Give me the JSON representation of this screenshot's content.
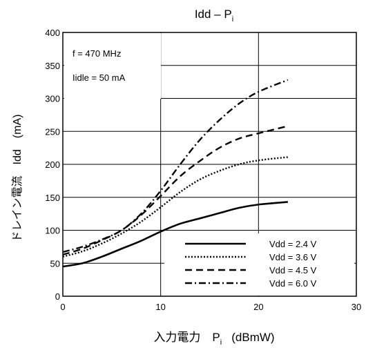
{
  "chart_data": {
    "type": "line",
    "title": "Idd – P",
    "title_sub": "i",
    "xlabel": "入力電力　P",
    "xlabel_sub": "i",
    "xlabel_unit": "(dBmW)",
    "ylabel": "ドレイン電流　Idd　(mA)",
    "xlim": [
      0,
      30
    ],
    "ylim": [
      0,
      400
    ],
    "x_ticks": [
      0,
      10,
      20,
      30
    ],
    "y_ticks": [
      0,
      50,
      100,
      150,
      200,
      250,
      300,
      350,
      400
    ],
    "annotations": [
      "f = 470 MHz",
      "Iidle = 50 mA"
    ],
    "legend_position": "bottom-right",
    "series": [
      {
        "name": "Vdd = 2.4 V",
        "dash": "solid",
        "x": [
          0,
          2,
          4,
          6,
          8,
          10,
          12,
          14,
          16,
          18,
          20,
          23
        ],
        "y": [
          45,
          50,
          60,
          72,
          84,
          98,
          110,
          118,
          126,
          134,
          139,
          143
        ]
      },
      {
        "name": "Vdd = 3.6 V",
        "dash": "dotted",
        "x": [
          0,
          2,
          4,
          6,
          8,
          10,
          12,
          14,
          16,
          18,
          20,
          23
        ],
        "y": [
          60,
          68,
          80,
          95,
          113,
          135,
          158,
          177,
          190,
          200,
          206,
          211
        ]
      },
      {
        "name": "Vdd = 4.5 V",
        "dash": "dashed",
        "x": [
          0,
          2,
          4,
          6,
          8,
          10,
          12,
          14,
          16,
          18,
          20,
          23
        ],
        "y": [
          63,
          72,
          85,
          100,
          123,
          152,
          182,
          205,
          225,
          239,
          247,
          258
        ]
      },
      {
        "name": "Vdd = 6.0 V",
        "dash": "dashdot",
        "x": [
          0,
          2,
          4,
          6,
          8,
          10,
          12,
          14,
          16,
          18,
          20,
          23
        ],
        "y": [
          67,
          75,
          86,
          100,
          125,
          160,
          200,
          237,
          267,
          292,
          310,
          328
        ]
      }
    ]
  }
}
